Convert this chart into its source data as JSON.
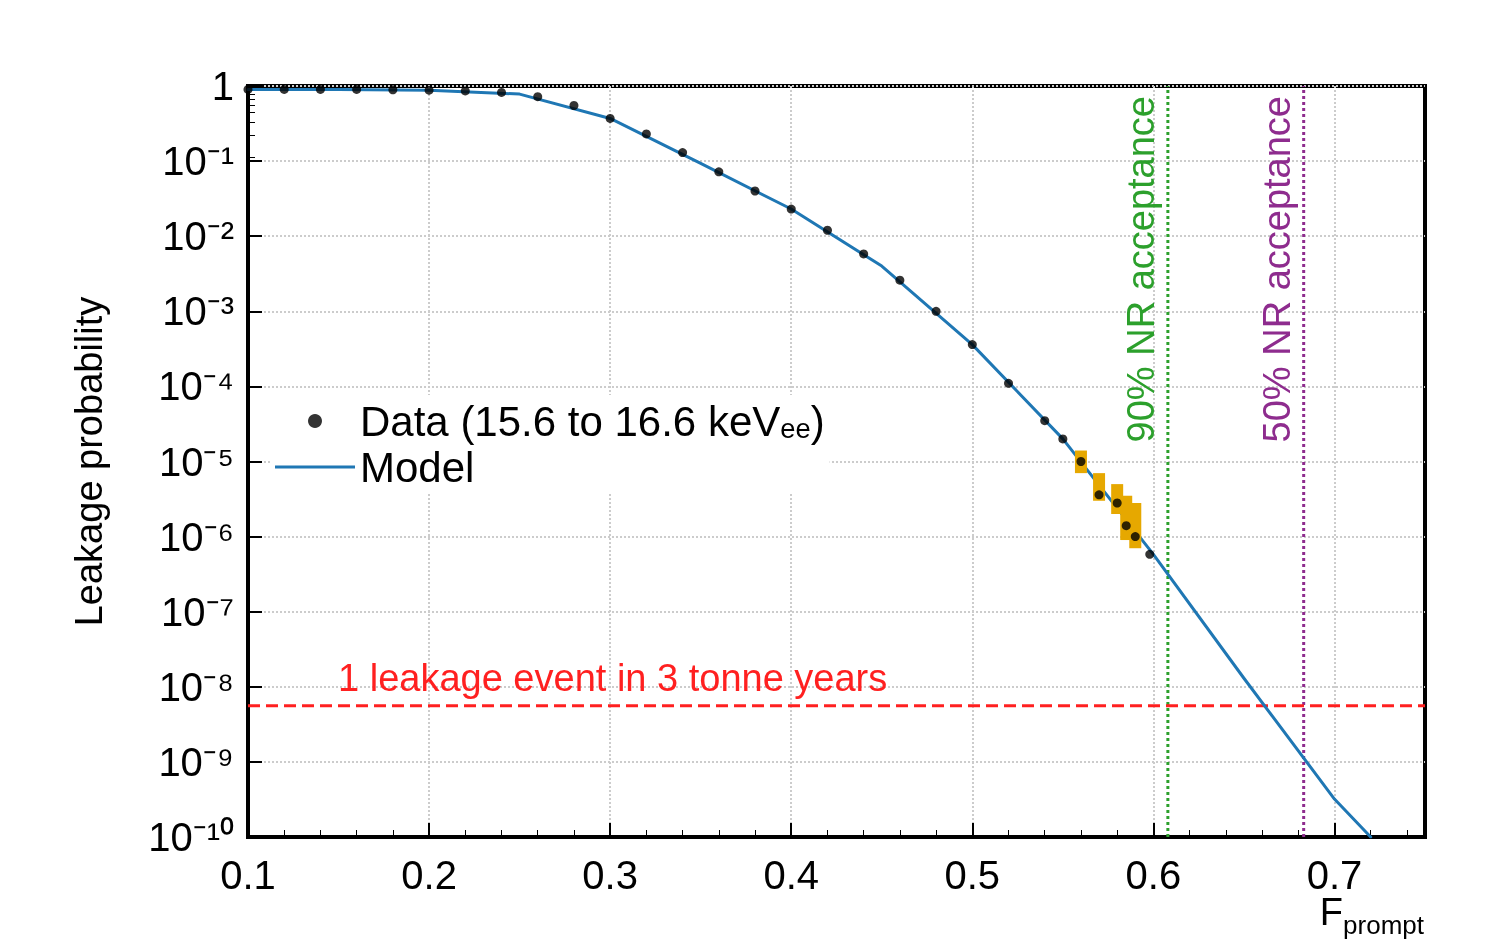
{
  "chart_data": {
    "type": "line",
    "xlabel": "F$_{prompt}$",
    "ylabel": "Leakage probability",
    "log": "y",
    "grid": true,
    "legend": "left",
    "xlim": [
      0.1,
      0.75
    ],
    "xticks": [
      0.1,
      0.2,
      0.3,
      0.4,
      0.5,
      0.6,
      0.7
    ],
    "ylim": [
      1e-10,
      1
    ],
    "yticks": [
      {
        "value": 1e-10,
        "label": "10⁻¹⁰"
      },
      {
        "value": 1e-09,
        "label": "10⁻⁹"
      },
      {
        "value": 1e-08,
        "label": "10⁻⁸"
      },
      {
        "value": 1e-07,
        "label": "10⁻⁷"
      },
      {
        "value": 1e-06,
        "label": "10⁻⁶"
      },
      {
        "value": 1e-05,
        "label": "10⁻⁵"
      },
      {
        "value": 0.0001,
        "label": "10⁻⁴"
      },
      {
        "value": 0.001,
        "label": "10⁻³"
      },
      {
        "value": 0.01,
        "label": "10⁻²"
      },
      {
        "value": 0.1,
        "label": "10⁻¹"
      },
      1
    ],
    "series": [
      {
        "name": "Data (15.6 to 16.6 keV$_{ee}$)",
        "type": "scatter",
        "color": "#000000",
        "marker": "circle",
        "x": [
          0.1,
          0.12,
          0.14,
          0.16,
          0.18,
          0.2,
          0.22,
          0.24,
          0.26,
          0.28,
          0.3,
          0.32,
          0.34,
          0.36,
          0.38,
          0.4,
          0.42,
          0.44,
          0.46,
          0.48,
          0.5,
          0.52,
          0.54,
          0.55,
          0.56,
          0.57,
          0.58,
          0.585,
          0.59,
          0.598
        ],
        "values": [
          0.9,
          0.9,
          0.9,
          0.9,
          0.89,
          0.88,
          0.86,
          0.82,
          0.72,
          0.55,
          0.37,
          0.23,
          0.13,
          0.072,
          0.04,
          0.023,
          0.012,
          0.0058,
          0.0026,
          0.001,
          0.00036,
          0.00011,
          3.5e-05,
          2e-05,
          1e-05,
          3.6e-06,
          2.8e-06,
          1.4e-06,
          1e-06,
          5.8e-07
        ],
        "errors": [
          null,
          null,
          null,
          null,
          null,
          null,
          null,
          null,
          null,
          null,
          null,
          null,
          null,
          null,
          null,
          null,
          null,
          null,
          null,
          null,
          null,
          null,
          null,
          null,
          [
            7e-06,
            1.4e-05
          ],
          [
            3e-06,
            7e-06
          ],
          [
            2e-06,
            5e-06
          ],
          [
            9e-07,
            3.5e-06
          ],
          [
            7e-07,
            2.8e-06
          ],
          null
        ]
      },
      {
        "name": "Model",
        "type": "line",
        "color": "#1f77b4",
        "marker": "none",
        "line_style": "solid",
        "x": [
          0.1,
          0.15,
          0.2,
          0.25,
          0.3,
          0.35,
          0.4,
          0.45,
          0.5,
          0.55,
          0.6,
          0.65,
          0.7,
          0.72
        ],
        "values": [
          0.9,
          0.9,
          0.88,
          0.78,
          0.37,
          0.093,
          0.023,
          0.004,
          0.00036,
          2e-05,
          5.8e-07,
          1.3e-08,
          3.2e-10,
          1e-10
        ]
      }
    ],
    "ref_lines": [
      {
        "axis": "x",
        "value": 0.608,
        "label": "90% NR acceptance",
        "color": "#2ca02c",
        "line_style": "dotted"
      },
      {
        "axis": "x",
        "value": 0.683,
        "label": "50% NR acceptance",
        "color": "#8e2c8e",
        "line_style": "dotted"
      },
      {
        "axis": "y",
        "value": 5.6e-09,
        "label": "1 leakage event in 3 tonne years",
        "color": "#ff2020",
        "line_style": "dashed"
      }
    ]
  }
}
